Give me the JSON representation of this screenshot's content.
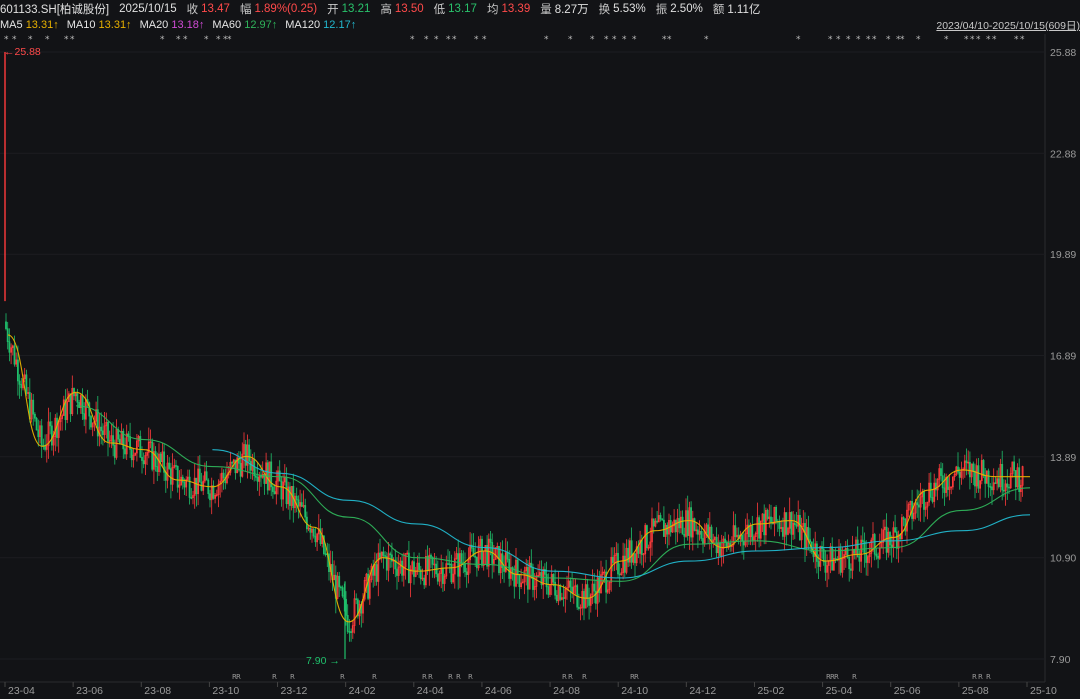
{
  "header": {
    "code": "601133.SH[柏诚股份]",
    "date": "2025/10/15",
    "close_label": "收",
    "close_value": "13.47",
    "change_label": "幅",
    "change_value": "1.89%(0.25)",
    "open_label": "开",
    "open_value": "13.21",
    "high_label": "高",
    "high_value": "13.50",
    "low_label": "低",
    "low_value": "13.17",
    "avg_label": "均",
    "avg_value": "13.39",
    "vol_label": "量",
    "vol_value": "8.27万",
    "turnover_label": "换",
    "turnover_value": "5.53%",
    "amplitude_label": "振",
    "amplitude_value": "2.50%",
    "amount_label": "额",
    "amount_value": "1.11亿"
  },
  "ma_legend": [
    {
      "label": "MA5",
      "value": "13.31↑",
      "color": "#ffffff",
      "value_color": "#e8b100"
    },
    {
      "label": "MA10",
      "value": "13.31↑",
      "color": "#ffffff",
      "value_color": "#e8b100"
    },
    {
      "label": "MA20",
      "value": "13.18↑",
      "color": "#ffffff",
      "value_color": "#d04bd6"
    },
    {
      "label": "MA60",
      "value": "12.97↑",
      "color": "#ffffff",
      "value_color": "#2fb35a"
    },
    {
      "label": "MA120",
      "value": "12.17↑",
      "color": "#ffffff",
      "value_color": "#22b8cf"
    }
  ],
  "range_label": "2023/04/10-2025/10/15(609日)",
  "annotations": {
    "high_marker": "←25.88",
    "low_marker": "7.90 →"
  },
  "chart_data": {
    "type": "line",
    "title": "",
    "ylim": [
      7.9,
      25.88
    ],
    "y_ticks": [
      "25.88",
      "22.88",
      "19.89",
      "16.89",
      "13.89",
      "10.90",
      "7.90"
    ],
    "x_ticks": [
      "23-04",
      "23-06",
      "23-08",
      "23-10",
      "23-12",
      "24-02",
      "24-04",
      "24-06",
      "24-08",
      "24-10",
      "24-12",
      "25-02",
      "25-04",
      "25-06",
      "25-08",
      "25-10"
    ],
    "grid": true,
    "colors": {
      "up": "#ff3b3b",
      "down": "#1fbf6b",
      "ma5": "#ffffff",
      "ma10": "#e8b100",
      "ma20": "#d04bd6",
      "ma60": "#2fb35a",
      "ma120": "#22b8cf"
    },
    "series": [
      {
        "name": "MA5",
        "x": [
          "23-04",
          "23-05",
          "23-06",
          "23-07",
          "23-08",
          "23-09",
          "23-10",
          "23-11",
          "23-12",
          "24-01",
          "24-02",
          "24-03",
          "24-04",
          "24-05",
          "24-06",
          "24-07",
          "24-08",
          "24-09",
          "24-10",
          "24-11",
          "24-12",
          "25-01",
          "25-02",
          "25-03",
          "25-04",
          "25-05",
          "25-06",
          "25-07",
          "25-08",
          "25-09",
          "25-10"
        ],
        "values": [
          17.5,
          14.2,
          15.8,
          14.3,
          14.1,
          13.2,
          13.0,
          13.9,
          13.0,
          11.8,
          9.0,
          10.9,
          10.5,
          10.6,
          11.1,
          10.4,
          10.1,
          9.7,
          10.8,
          11.7,
          12.0,
          11.2,
          11.9,
          12.0,
          10.8,
          11.0,
          11.5,
          12.9,
          13.5,
          13.3,
          13.3
        ]
      },
      {
        "name": "MA60",
        "x": [
          "23-06",
          "23-08",
          "23-10",
          "23-12",
          "24-02",
          "24-04",
          "24-06",
          "24-08",
          "24-10",
          "24-12",
          "25-02",
          "25-04",
          "25-06",
          "25-08",
          "25-10"
        ],
        "values": [
          15.4,
          14.4,
          13.6,
          13.3,
          12.1,
          10.9,
          10.7,
          10.3,
          10.2,
          11.3,
          11.4,
          11.1,
          11.2,
          12.3,
          12.97
        ]
      },
      {
        "name": "MA120",
        "x": [
          "23-10",
          "23-12",
          "24-02",
          "24-04",
          "24-06",
          "24-08",
          "24-10",
          "24-12",
          "25-02",
          "25-04",
          "25-06",
          "25-08",
          "25-10"
        ],
        "values": [
          14.1,
          13.4,
          12.6,
          11.9,
          11.2,
          10.5,
          10.3,
          10.8,
          11.1,
          11.2,
          11.4,
          11.7,
          12.17
        ]
      }
    ]
  }
}
